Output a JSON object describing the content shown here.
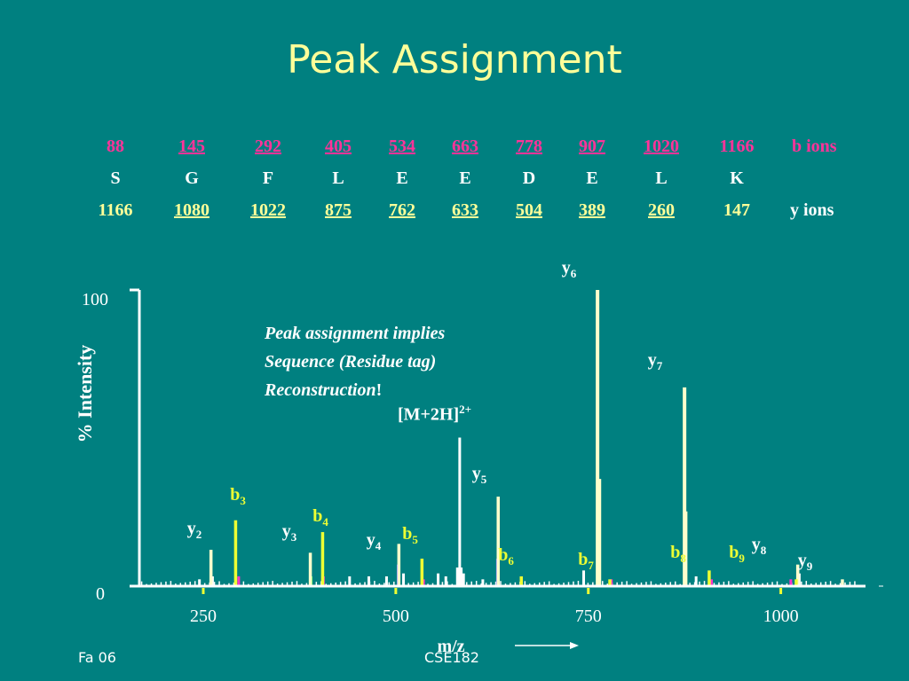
{
  "title": "Peak Assignment",
  "table": {
    "b_ions": [
      "88",
      "145",
      "292",
      "405",
      "534",
      "663",
      "778",
      "907",
      "1020",
      "1166"
    ],
    "b_underlined": [
      false,
      true,
      true,
      true,
      true,
      true,
      true,
      true,
      true,
      false
    ],
    "b_label": "b ions",
    "residues": [
      "S",
      "G",
      "F",
      "L",
      "E",
      "E",
      "D",
      "E",
      "L",
      "K"
    ],
    "y_ions": [
      "1166",
      "1080",
      "1022",
      "875",
      "762",
      "633",
      "504",
      "389",
      "260",
      "147"
    ],
    "y_underlined": [
      false,
      true,
      true,
      true,
      true,
      true,
      true,
      true,
      true,
      false
    ],
    "y_label": "y ions"
  },
  "annotation": {
    "line1": "Peak assignment implies",
    "line2": "Sequence (Residue tag)",
    "line3": "Reconstruction",
    "line3_suffix": "!"
  },
  "precursor": {
    "text": "[M+2H]",
    "charge": "2+"
  },
  "footer": {
    "left": "Fa 06",
    "center": "CSE182"
  },
  "colors": {
    "background": "#008080",
    "b_ion": "#ff3399",
    "y_ion": "#ffff99",
    "b_peak": "#eeff33",
    "y_peak": "#ffffcc",
    "axis": "#ffffff"
  },
  "chart_data": {
    "type": "bar",
    "xlabel": "m/z",
    "ylabel": "% Intensity",
    "xticks": [
      250,
      500,
      750,
      1000
    ],
    "ytick_labels": [
      "0",
      "100"
    ],
    "xlim": [
      167,
      1110
    ],
    "ylim": [
      0,
      100
    ],
    "labeled_peaks": [
      {
        "ion": "y",
        "sub": "2",
        "mz": 260,
        "intensity": 12
      },
      {
        "ion": "b",
        "sub": "3",
        "mz": 292,
        "intensity": 22
      },
      {
        "ion": "y",
        "sub": "3",
        "mz": 389,
        "intensity": 11
      },
      {
        "ion": "b",
        "sub": "4",
        "mz": 405,
        "intensity": 18
      },
      {
        "ion": "y",
        "sub": "4",
        "mz": 504,
        "intensity": 14
      },
      {
        "ion": "b",
        "sub": "5",
        "mz": 534,
        "intensity": 9
      },
      {
        "ion": "y",
        "sub": "5",
        "mz": 633,
        "intensity": 30
      },
      {
        "ion": "b",
        "sub": "6",
        "mz": 663,
        "intensity": 3
      },
      {
        "ion": "y",
        "sub": "6",
        "mz": 762,
        "intensity": 100
      },
      {
        "ion": "b",
        "sub": "7",
        "mz": 778,
        "intensity": 2
      },
      {
        "ion": "y",
        "sub": "7",
        "mz": 875,
        "intensity": 67
      },
      {
        "ion": "b",
        "sub": "8",
        "mz": 907,
        "intensity": 5
      },
      {
        "ion": "y",
        "sub": "8",
        "mz": 1022,
        "intensity": 7
      },
      {
        "ion": "b",
        "sub": "9",
        "mz": 1020,
        "intensity": 2
      },
      {
        "ion": "y",
        "sub": "9",
        "mz": 1080,
        "intensity": 2
      }
    ],
    "other_peaks": [
      {
        "mz": 583,
        "intensity": 50,
        "color": "#ffffff"
      },
      {
        "mz": 765,
        "intensity": 36,
        "color": "#ffffcc"
      },
      {
        "mz": 877,
        "intensity": 25,
        "color": "#ffffcc"
      },
      {
        "mz": 503,
        "intensity": 7,
        "color": "#7777ff"
      },
      {
        "mz": 632,
        "intensity": 9,
        "color": "#7777ff"
      },
      {
        "mz": 580,
        "intensity": 6,
        "color": "#ffffff"
      },
      {
        "mz": 585,
        "intensity": 6,
        "color": "#ffffff"
      },
      {
        "mz": 510,
        "intensity": 4,
        "color": "#ffffff"
      },
      {
        "mz": 440,
        "intensity": 3,
        "color": "#ffffff"
      },
      {
        "mz": 465,
        "intensity": 3,
        "color": "#ffffff"
      },
      {
        "mz": 488,
        "intensity": 3,
        "color": "#ffffff"
      },
      {
        "mz": 555,
        "intensity": 4,
        "color": "#ffffff"
      },
      {
        "mz": 565,
        "intensity": 3,
        "color": "#ffffff"
      },
      {
        "mz": 588,
        "intensity": 4,
        "color": "#ffffff"
      },
      {
        "mz": 613,
        "intensity": 2,
        "color": "#ffffff"
      },
      {
        "mz": 744,
        "intensity": 5,
        "color": "#ffffff"
      },
      {
        "mz": 890,
        "intensity": 3,
        "color": "#ffffff"
      },
      {
        "mz": 910,
        "intensity": 2,
        "color": "#ff33cc"
      },
      {
        "mz": 1013,
        "intensity": 2,
        "color": "#ff33cc"
      },
      {
        "mz": 1024,
        "intensity": 4,
        "color": "#ffffff"
      },
      {
        "mz": 245,
        "intensity": 2,
        "color": "#ffffff"
      },
      {
        "mz": 262,
        "intensity": 3,
        "color": "#ffffff"
      },
      {
        "mz": 296,
        "intensity": 3,
        "color": "#ff33cc"
      },
      {
        "mz": 406,
        "intensity": 3,
        "color": "#ff33cc"
      },
      {
        "mz": 390,
        "intensity": 3,
        "color": "#66ff66"
      },
      {
        "mz": 536,
        "intensity": 2,
        "color": "#ff33cc"
      },
      {
        "mz": 780,
        "intensity": 2,
        "color": "#ff33cc"
      }
    ]
  }
}
